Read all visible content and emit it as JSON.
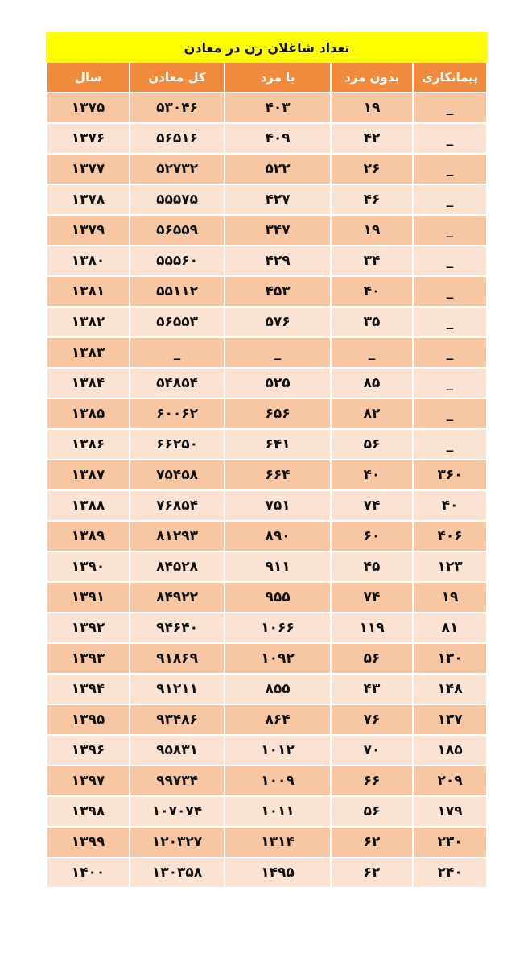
{
  "table": {
    "title": "تعداد شاغلان زن  در معادن",
    "header": [
      "پیمانکاری",
      "بدون مزد",
      "با مزد",
      "کل معادن",
      "سال"
    ],
    "rows": [
      [
        "_",
        "۱۹",
        "۴۰۳",
        "۵۳۰۴۶",
        "۱۳۷۵"
      ],
      [
        "_",
        "۴۲",
        "۴۰۹",
        "۵۶۵۱۶",
        "۱۳۷۶"
      ],
      [
        "_",
        "۲۶",
        "۵۲۲",
        "۵۲۷۳۲",
        "۱۳۷۷"
      ],
      [
        "_",
        "۴۶",
        "۴۲۷",
        "۵۵۵۷۵",
        "۱۳۷۸"
      ],
      [
        "_",
        "۱۹",
        "۳۴۷",
        "۵۶۵۵۹",
        "۱۳۷۹"
      ],
      [
        "_",
        "۳۴",
        "۴۲۹",
        "۵۵۵۶۰",
        "۱۳۸۰"
      ],
      [
        "_",
        "۴۰",
        "۴۵۳",
        "۵۵۱۱۲",
        "۱۳۸۱"
      ],
      [
        "_",
        "۳۵",
        "۵۷۶",
        "۵۶۵۵۳",
        "۱۳۸۲"
      ],
      [
        "_",
        "_",
        "_",
        "_",
        "۱۳۸۳"
      ],
      [
        "_",
        "۸۵",
        "۵۲۵",
        "۵۴۸۵۴",
        "۱۳۸۴"
      ],
      [
        "_",
        "۸۲",
        "۶۵۶",
        "۶۰۰۶۲",
        "۱۳۸۵"
      ],
      [
        "_",
        "۵۶",
        "۶۴۱",
        "۶۶۲۵۰",
        "۱۳۸۶"
      ],
      [
        "۳۶۰",
        "۴۰",
        "۶۶۴",
        "۷۵۴۵۸",
        "۱۳۸۷"
      ],
      [
        "۴۰",
        "۷۴",
        "۷۵۱",
        "۷۶۸۵۴",
        "۱۳۸۸"
      ],
      [
        "۴۰۶",
        "۶۰",
        "۸۹۰",
        "۸۱۲۹۳",
        "۱۳۸۹"
      ],
      [
        "۱۲۳",
        "۴۵",
        "۹۱۱",
        "۸۴۵۲۸",
        "۱۳۹۰"
      ],
      [
        "۱۹",
        "۷۴",
        "۹۵۵",
        "۸۴۹۲۲",
        "۱۳۹۱"
      ],
      [
        "۸۱",
        "۱۱۹",
        "۱۰۶۶",
        "۹۴۶۴۰",
        "۱۳۹۲"
      ],
      [
        "۱۳۰",
        "۵۶",
        "۱۰۹۲",
        "۹۱۸۶۹",
        "۱۳۹۳"
      ],
      [
        "۱۴۸",
        "۴۳",
        "۸۵۵",
        "۹۱۲۱۱",
        "۱۳۹۴"
      ],
      [
        "۱۳۷",
        "۷۶",
        "۸۶۴",
        "۹۳۴۸۶",
        "۱۳۹۵"
      ],
      [
        "۱۸۵",
        "۷۰",
        "۱۰۱۲",
        "۹۵۸۳۱",
        "۱۳۹۶"
      ],
      [
        "۲۰۹",
        "۶۶",
        "۱۰۰۹",
        "۹۹۷۳۴",
        "۱۳۹۷"
      ],
      [
        "۱۷۹",
        "۵۶",
        "۱۰۱۱",
        "۱۰۷۰۷۴",
        "۱۳۹۸"
      ],
      [
        "۲۳۰",
        "۶۲",
        "۱۳۱۴",
        "۱۲۰۳۲۷",
        "۱۳۹۹"
      ],
      [
        "۲۴۰",
        "۶۲",
        "۱۴۹۵",
        "۱۳۰۳۵۸",
        "۱۴۰۰"
      ]
    ]
  }
}
